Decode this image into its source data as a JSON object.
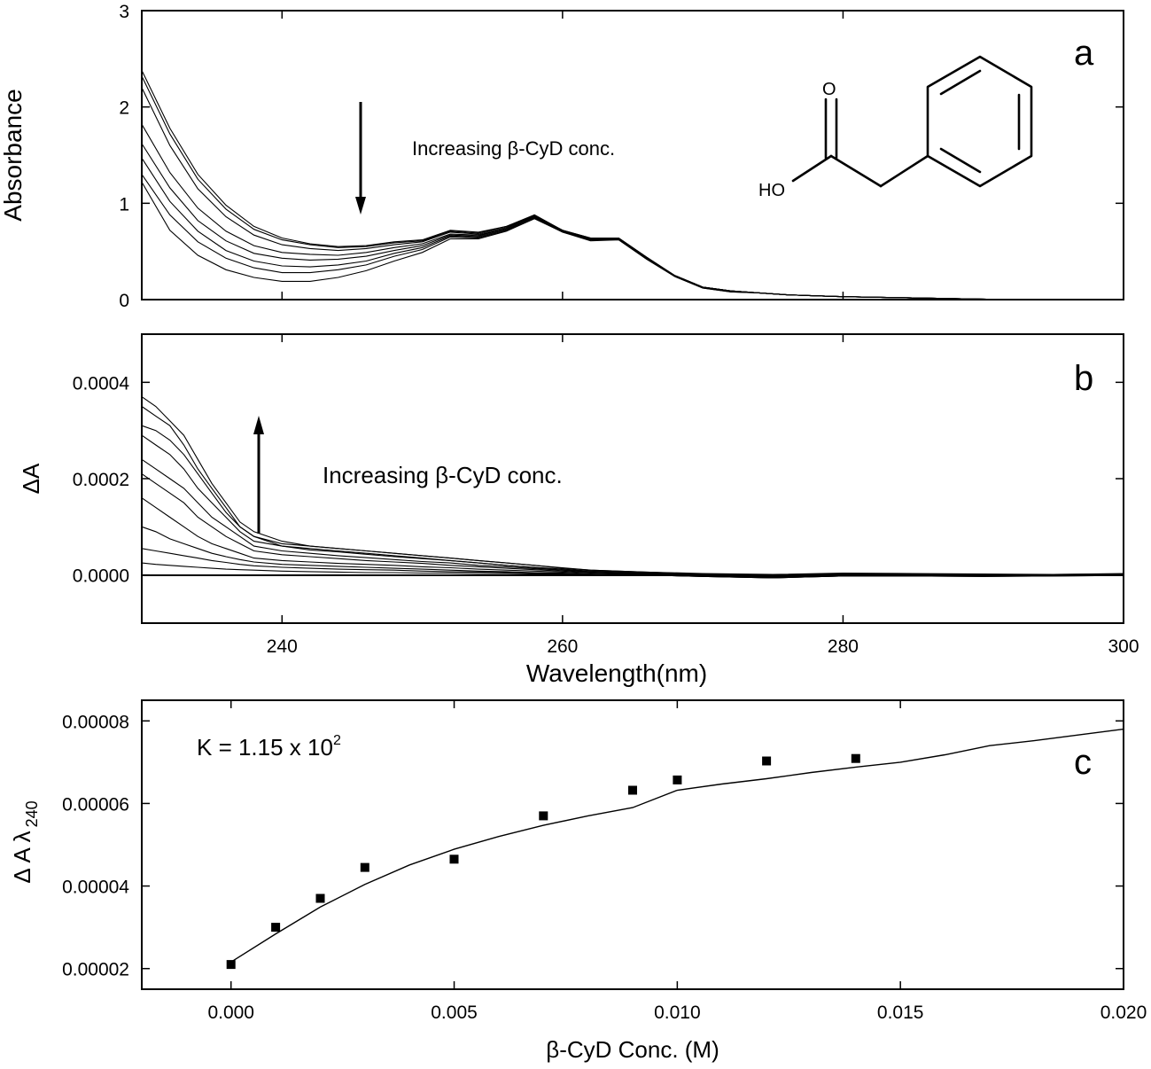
{
  "chart_data": [
    {
      "panel": "a",
      "type": "line",
      "xlabel": "",
      "ylabel": "Absorbance",
      "xlim": [
        230,
        300
      ],
      "ylim": [
        0,
        3
      ],
      "x_ticks": [
        240,
        260,
        280
      ],
      "y_ticks": [
        0,
        1,
        2,
        3
      ],
      "y_tick_labels": [
        "0",
        "1",
        "2",
        "3"
      ],
      "annotation": "Increasing β-CyD conc.",
      "arrow": "down",
      "structure_labels": {
        "carbonyl_o": "O",
        "hydroxyl": "HO"
      },
      "x": [
        230,
        232,
        234,
        236,
        238,
        240,
        242,
        244,
        246,
        248,
        250,
        252,
        254,
        256,
        258,
        260,
        262,
        264,
        266,
        268,
        270,
        272,
        274,
        276,
        278,
        280,
        284,
        288,
        292,
        300
      ],
      "series": [
        {
          "values": [
            2.38,
            1.78,
            1.3,
            0.98,
            0.76,
            0.64,
            0.58,
            0.55,
            0.56,
            0.6,
            0.62,
            0.72,
            0.7,
            0.76,
            0.88,
            0.72,
            0.64,
            0.64,
            0.44,
            0.25,
            0.13,
            0.09,
            0.07,
            0.05,
            0.04,
            0.03,
            0.02,
            0.01,
            0.0,
            0.0
          ]
        },
        {
          "values": [
            2.32,
            1.72,
            1.25,
            0.94,
            0.73,
            0.62,
            0.57,
            0.54,
            0.55,
            0.59,
            0.61,
            0.71,
            0.69,
            0.76,
            0.87,
            0.72,
            0.64,
            0.64,
            0.44,
            0.25,
            0.13,
            0.09,
            0.07,
            0.05,
            0.04,
            0.03,
            0.02,
            0.01,
            0.0,
            0.0
          ]
        },
        {
          "values": [
            2.2,
            1.6,
            1.15,
            0.86,
            0.67,
            0.57,
            0.53,
            0.51,
            0.53,
            0.57,
            0.6,
            0.7,
            0.68,
            0.75,
            0.87,
            0.72,
            0.63,
            0.64,
            0.44,
            0.25,
            0.13,
            0.09,
            0.07,
            0.05,
            0.04,
            0.03,
            0.02,
            0.01,
            0.0,
            0.0
          ]
        },
        {
          "values": [
            1.82,
            1.32,
            0.95,
            0.71,
            0.56,
            0.49,
            0.47,
            0.46,
            0.49,
            0.54,
            0.58,
            0.68,
            0.67,
            0.74,
            0.86,
            0.71,
            0.63,
            0.63,
            0.43,
            0.25,
            0.13,
            0.09,
            0.07,
            0.05,
            0.04,
            0.03,
            0.02,
            0.01,
            0.0,
            0.0
          ]
        },
        {
          "values": [
            1.62,
            1.16,
            0.82,
            0.61,
            0.48,
            0.43,
            0.41,
            0.42,
            0.45,
            0.51,
            0.56,
            0.67,
            0.66,
            0.74,
            0.86,
            0.71,
            0.63,
            0.63,
            0.43,
            0.25,
            0.13,
            0.09,
            0.07,
            0.05,
            0.04,
            0.03,
            0.02,
            0.01,
            0.0,
            0.0
          ]
        },
        {
          "values": [
            1.47,
            1.02,
            0.71,
            0.51,
            0.4,
            0.35,
            0.34,
            0.36,
            0.4,
            0.48,
            0.54,
            0.66,
            0.65,
            0.73,
            0.85,
            0.71,
            0.62,
            0.63,
            0.43,
            0.24,
            0.13,
            0.09,
            0.07,
            0.05,
            0.04,
            0.03,
            0.02,
            0.01,
            0.0,
            0.0
          ]
        },
        {
          "values": [
            1.3,
            0.88,
            0.6,
            0.43,
            0.33,
            0.28,
            0.28,
            0.31,
            0.36,
            0.45,
            0.52,
            0.65,
            0.64,
            0.72,
            0.85,
            0.7,
            0.62,
            0.62,
            0.42,
            0.24,
            0.12,
            0.08,
            0.07,
            0.05,
            0.04,
            0.03,
            0.02,
            0.01,
            0.0,
            0.0
          ]
        },
        {
          "values": [
            1.22,
            0.72,
            0.46,
            0.31,
            0.23,
            0.19,
            0.19,
            0.23,
            0.3,
            0.4,
            0.49,
            0.63,
            0.63,
            0.71,
            0.84,
            0.7,
            0.61,
            0.62,
            0.42,
            0.24,
            0.12,
            0.08,
            0.07,
            0.05,
            0.04,
            0.03,
            0.02,
            0.01,
            0.0,
            0.0
          ]
        }
      ]
    },
    {
      "panel": "b",
      "type": "line",
      "xlabel": "Wavelength(nm)",
      "ylabel": "ΔA",
      "xlim": [
        230,
        300
      ],
      "ylim": [
        -0.0001,
        0.0005
      ],
      "x_ticks": [
        240,
        260,
        280,
        300
      ],
      "x_tick_labels": [
        "240",
        "260",
        "280",
        "300"
      ],
      "y_ticks": [
        0.0,
        0.0002,
        0.0004
      ],
      "y_tick_labels": [
        "0.0000",
        "0.0002",
        "0.0004"
      ],
      "annotation": "Increasing β-CyD conc.",
      "arrow": "up",
      "x": [
        230,
        231,
        232,
        233,
        234,
        235,
        236,
        237,
        238,
        240,
        242,
        244,
        246,
        248,
        250,
        252,
        254,
        256,
        258,
        260,
        262,
        266,
        270,
        275,
        280,
        285,
        290,
        295,
        300
      ],
      "series": [
        {
          "values": [
            0.00035,
            0.00033,
            0.00031,
            0.00027,
            0.00022,
            0.00018,
            0.00014,
            0.0001,
            8e-05,
            6e-05,
            5.5e-05,
            5e-05,
            4.5e-05,
            4e-05,
            3.5e-05,
            3e-05,
            2.5e-05,
            2e-05,
            1.5e-05,
            1e-05,
            8e-06,
            5e-06,
            2e-06,
            0.0,
            3e-06,
            2e-06,
            1e-06,
            0.0,
            2e-06
          ]
        },
        {
          "values": [
            0.00037,
            0.00035,
            0.00032,
            0.00029,
            0.00024,
            0.00019,
            0.00015,
            0.00011,
            9e-05,
            7e-05,
            6e-05,
            5.5e-05,
            5e-05,
            4.5e-05,
            4e-05,
            3.5e-05,
            3e-05,
            2.5e-05,
            2e-05,
            1.5e-05,
            1e-05,
            6e-06,
            3e-06,
            1e-06,
            4e-06,
            3e-06,
            2e-06,
            1e-06,
            3e-06
          ]
        },
        {
          "values": [
            0.00031,
            0.0003,
            0.00028,
            0.00025,
            0.00021,
            0.00017,
            0.00013,
            0.0001,
            8e-05,
            6.5e-05,
            6e-05,
            5.5e-05,
            5e-05,
            4.5e-05,
            4e-05,
            3.5e-05,
            3e-05,
            2.5e-05,
            2e-05,
            1.4e-05,
            1e-05,
            6e-06,
            2e-06,
            0.0,
            3e-06,
            2e-06,
            1e-06,
            1e-06,
            2e-06
          ]
        },
        {
          "values": [
            0.00029,
            0.00027,
            0.00025,
            0.00022,
            0.00018,
            0.00015,
            0.00012,
            9e-05,
            7e-05,
            6e-05,
            5.2e-05,
            4.8e-05,
            4.3e-05,
            3.8e-05,
            3.4e-05,
            3e-05,
            2.5e-05,
            2e-05,
            1.6e-05,
            1.2e-05,
            8e-06,
            4e-06,
            1e-06,
            -2e-06,
            2e-06,
            1e-06,
            0.0,
            0.0,
            1e-06
          ]
        },
        {
          "values": [
            0.00024,
            0.00022,
            0.0002,
            0.00018,
            0.00015,
            0.00012,
            0.0001,
            8e-05,
            6e-05,
            5e-05,
            4.5e-05,
            4e-05,
            3.6e-05,
            3.2e-05,
            2.8e-05,
            2.5e-05,
            2e-05,
            1.7e-05,
            1.3e-05,
            1e-05,
            6e-06,
            3e-06,
            0.0,
            -3e-06,
            1e-06,
            0.0,
            -1e-06,
            0.0,
            1e-06
          ]
        },
        {
          "values": [
            0.00021,
            0.00019,
            0.00017,
            0.00015,
            0.00012,
            0.0001,
            8e-05,
            6.5e-05,
            5e-05,
            4.2e-05,
            3.8e-05,
            3.4e-05,
            3e-05,
            2.7e-05,
            2.4e-05,
            2e-05,
            1.7e-05,
            1.4e-05,
            1.1e-05,
            8e-06,
            5e-06,
            2e-06,
            -1e-06,
            -4e-06,
            0.0,
            0.0,
            -1e-06,
            0.0,
            0.0
          ]
        },
        {
          "values": [
            0.00016,
            0.00014,
            0.00012,
            0.0001,
            8e-05,
            6.5e-05,
            5.5e-05,
            4.5e-05,
            3.5e-05,
            3e-05,
            2.7e-05,
            2.4e-05,
            2.2e-05,
            2e-05,
            1.7e-05,
            1.5e-05,
            1.2e-05,
            1e-05,
            8e-06,
            6e-06,
            4e-06,
            1e-06,
            -2e-06,
            -5e-06,
            -1e-06,
            -1e-06,
            -2e-06,
            -1e-06,
            0.0
          ]
        },
        {
          "values": [
            0.0001,
            9e-05,
            7.5e-05,
            6.5e-05,
            5.5e-05,
            4.5e-05,
            3.8e-05,
            3.2e-05,
            2.7e-05,
            2.2e-05,
            2e-05,
            1.8e-05,
            1.6e-05,
            1.4e-05,
            1.2e-05,
            1e-05,
            8e-06,
            7e-06,
            5e-06,
            4e-06,
            2e-06,
            0.0,
            -3e-06,
            -6e-06,
            -2e-06,
            -2e-06,
            -2e-06,
            -1e-06,
            -1e-06
          ]
        },
        {
          "values": [
            5.5e-05,
            5e-05,
            4.5e-05,
            4e-05,
            3.5e-05,
            3e-05,
            2.6e-05,
            2.2e-05,
            1.9e-05,
            1.6e-05,
            1.4e-05,
            1.2e-05,
            1.1e-05,
            1e-05,
            8e-06,
            7e-06,
            6e-06,
            5e-06,
            4e-06,
            3e-06,
            1e-06,
            0.0,
            -3e-06,
            -6e-06,
            -2e-06,
            -2e-06,
            -3e-06,
            -2e-06,
            -1e-06
          ]
        },
        {
          "values": [
            2.5e-05,
            2.2e-05,
            2e-05,
            1.8e-05,
            1.6e-05,
            1.4e-05,
            1.2e-05,
            1.1e-05,
            1e-05,
            8e-06,
            7e-06,
            6e-06,
            5e-06,
            5e-06,
            4e-06,
            4e-06,
            3e-06,
            3e-06,
            2e-06,
            2e-06,
            1e-06,
            0.0,
            -3e-06,
            -6e-06,
            -2e-06,
            -2e-06,
            -3e-06,
            -2e-06,
            -1e-06
          ]
        }
      ]
    },
    {
      "panel": "c",
      "type": "scatter",
      "xlabel": "β-CyD Conc. (M)",
      "ylabel_main": "Δ A λ",
      "ylabel_sub": "240",
      "xlim": [
        -0.002,
        0.02
      ],
      "ylim": [
        1.5e-05,
        8.5e-05
      ],
      "x_ticks": [
        0.0,
        0.005,
        0.01,
        0.015,
        0.02
      ],
      "x_tick_labels": [
        "0.000",
        "0.005",
        "0.010",
        "0.015",
        "0.020"
      ],
      "y_ticks": [
        2e-05,
        4e-05,
        6e-05,
        8e-05
      ],
      "y_tick_labels": [
        "0.00002",
        "0.00004",
        "0.00006",
        "0.00008"
      ],
      "annotation_main": "K = 1.15 x 10",
      "annotation_sup": "2",
      "points": {
        "x": [
          0.0,
          0.001,
          0.002,
          0.003,
          0.005,
          0.007,
          0.009,
          0.01,
          0.012,
          0.014
        ],
        "y": [
          2.1e-05,
          3e-05,
          3.7e-05,
          4.45e-05,
          4.65e-05,
          5.7e-05,
          6.32e-05,
          6.57e-05,
          7.03e-05,
          7.09e-05
        ]
      },
      "fit": {
        "x": [
          0.0,
          0.001,
          0.002,
          0.003,
          0.004,
          0.005,
          0.006,
          0.007,
          0.008,
          0.009,
          0.01,
          0.011,
          0.012,
          0.013,
          0.014,
          0.015,
          0.016,
          0.017,
          0.018,
          0.019,
          0.02
        ],
        "y": [
          2.16e-05,
          2.84e-05,
          3.49e-05,
          4.04e-05,
          4.51e-05,
          4.89e-05,
          5.2e-05,
          5.47e-05,
          5.7e-05,
          5.9e-05,
          6.32e-05,
          6.47e-05,
          6.6e-05,
          6.75e-05,
          6.88e-05,
          7e-05,
          7.18e-05,
          7.4e-05,
          7.52e-05,
          7.66e-05,
          7.8e-05
        ]
      }
    }
  ],
  "panel_labels": {
    "a": "a",
    "b": "b",
    "c": "c"
  }
}
